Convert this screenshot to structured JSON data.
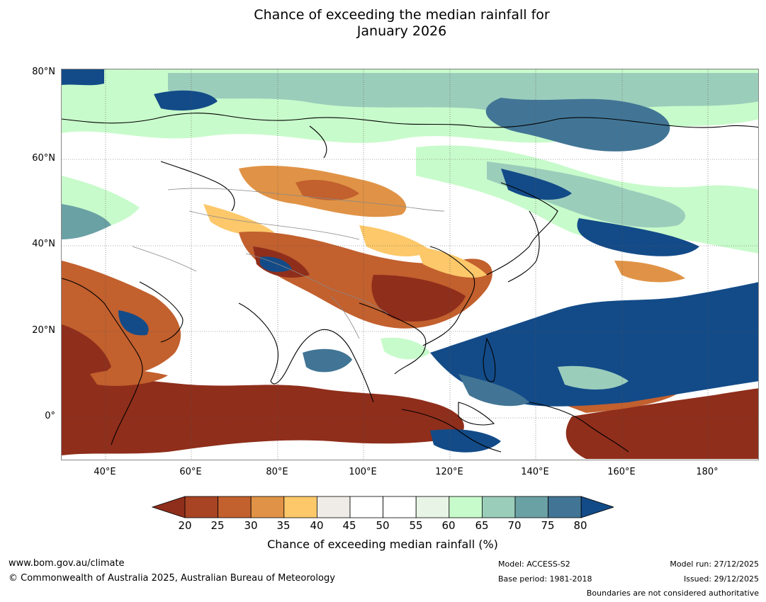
{
  "title": {
    "line1": "Chance of exceeding the median rainfall for",
    "line2": "January 2026"
  },
  "map": {
    "lat_labels": [
      "80°N",
      "60°N",
      "40°N",
      "20°N",
      "0°"
    ],
    "lon_labels": [
      "40°E",
      "60°E",
      "80°E",
      "100°E",
      "120°E",
      "140°E",
      "160°E",
      "180°"
    ]
  },
  "colorbar": {
    "ticks": [
      "20",
      "25",
      "30",
      "35",
      "40",
      "45",
      "50",
      "55",
      "60",
      "65",
      "70",
      "75",
      "80"
    ],
    "colors": [
      "#8f2e1b",
      "#a84424",
      "#c2602e",
      "#e09346",
      "#fcc86a",
      "#efebe6",
      "#ffffff",
      "#ffffff",
      "#e8f5e6",
      "#c8fbcb",
      "#9bcdbb",
      "#6aa1a5",
      "#427595",
      "#134b88"
    ],
    "label": "Chance of exceeding median rainfall (%)"
  },
  "footer": {
    "website": "www.bom.gov.au/climate",
    "copyright": "© Commonwealth of Australia 2025, Australian Bureau of Meteorology",
    "model": "Model: ACCESS-S2",
    "base_period": "Base period: 1981-2018",
    "model_run": "Model run: 27/12/2025",
    "issued": "Issued: 29/12/2025",
    "disclaimer": "Boundaries are not considered authoritative"
  }
}
